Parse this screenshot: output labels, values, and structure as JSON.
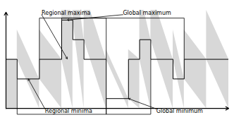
{
  "chart_data": {
    "type": "area",
    "x": [
      0,
      1,
      1,
      3,
      3,
      5,
      5,
      6,
      6,
      7,
      7,
      9,
      9,
      11,
      11,
      12,
      12,
      13,
      13,
      15,
      15,
      16,
      16,
      18,
      18,
      20
    ],
    "series": [
      {
        "type": "area",
        "color": "#d8d8d8",
        "values": [
          5,
          5,
          3,
          3,
          5,
          5,
          9,
          9,
          7,
          7,
          5,
          5,
          1,
          1,
          5,
          5,
          7,
          7,
          5,
          5,
          3,
          3,
          5,
          5,
          5,
          5
        ]
      },
      {
        "type": "line",
        "color": "#000000",
        "values": [
          5,
          5,
          3,
          3,
          5,
          5,
          9,
          9,
          7,
          7,
          5,
          5,
          1,
          1,
          5,
          5,
          7,
          7,
          5,
          5,
          3,
          3,
          5,
          5,
          5,
          5
        ]
      }
    ],
    "xlim": [
      0,
      20
    ],
    "ylim": [
      -1.5,
      10
    ],
    "tick_labels": false,
    "annotations": [
      {
        "xy": [
          0,
          9.8
        ],
        "xytext": [
          0,
          0
        ]
      },
      {
        "xy": [
          20,
          0
        ],
        "xytext": [
          0,
          0
        ]
      },
      {
        "text": "Regional maxima",
        "xy": [
          5.5,
          5.05
        ],
        "xytext": [
          3.2,
          9.55
        ],
        "bracket": {
          "x": [
            3,
            9
          ],
          "y": 9.2,
          "from": [
            5.0,
            5.0
          ]
        }
      },
      {
        "text": "Global maximum",
        "xy": [
          5.5,
          9.0
        ],
        "xytext": [
          10.5,
          9.55
        ],
        "bracket": {
          "x": [
            5,
            16
          ],
          "y": 9.2,
          "from": [
            9.0,
            5.0
          ]
        }
      },
      {
        "text": "Regional minima",
        "xy": [
          2,
          3.0
        ],
        "xytext": [
          3.5,
          -0.05
        ],
        "bracket": {
          "x": [
            1,
            9
          ],
          "y": -0.6,
          "from": [
            3.0,
            1.0
          ]
        }
      },
      {
        "text": "Global minimum",
        "xy": [
          11,
          1.0
        ],
        "xytext": [
          13.5,
          -0.05
        ],
        "bracket": {
          "x": [
            9,
            13
          ],
          "y": -0.6,
          "from": [
            1.0,
            5.0
          ]
        }
      }
    ]
  }
}
